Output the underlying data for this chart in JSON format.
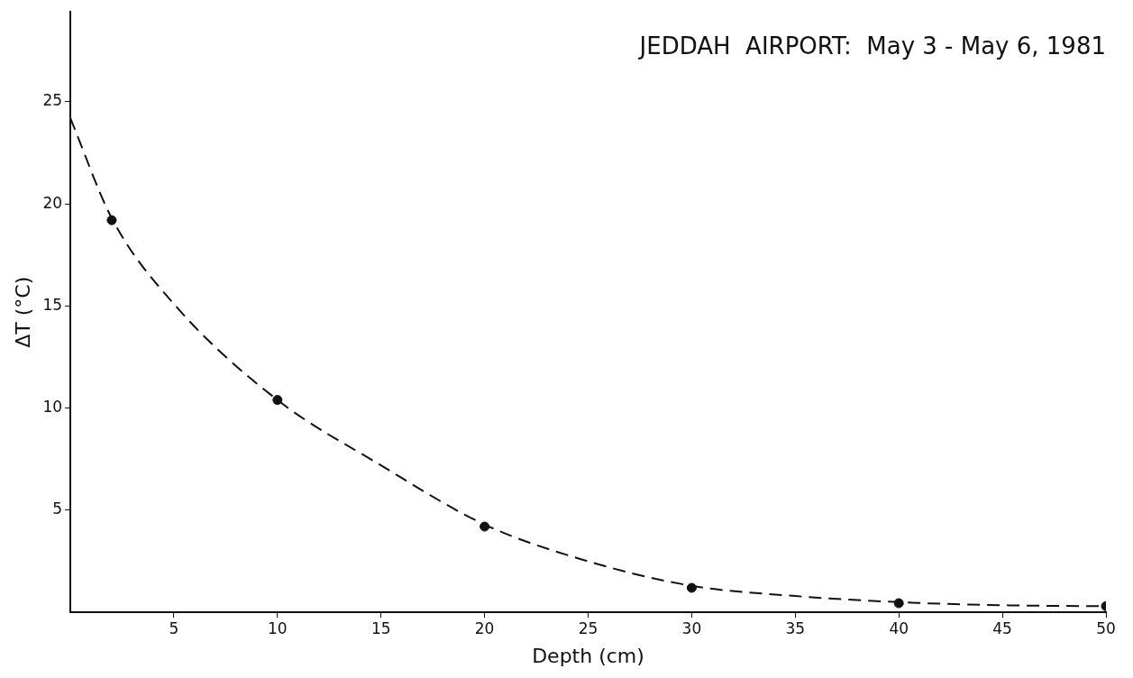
{
  "chart_data": {
    "type": "scatter",
    "title": "JEDDAH  AIRPORT:  May 3 - May 6, 1981",
    "xlabel": "Depth (cm)",
    "ylabel": "ΔT (°C)",
    "xlim": [
      0,
      50
    ],
    "xticks": [
      5,
      10,
      15,
      20,
      25,
      30,
      35,
      40,
      45,
      50
    ],
    "ylim": [
      0,
      29.4
    ],
    "yticks": [
      5,
      10,
      15,
      20,
      25
    ],
    "grid": false,
    "legend": false,
    "series": [
      {
        "color": "#111111",
        "marker": "circle",
        "x": [
          2,
          10,
          20,
          30,
          40,
          50
        ],
        "values": [
          19.2,
          10.4,
          4.2,
          1.2,
          0.45,
          0.3
        ]
      },
      {
        "type": "line",
        "color": "#111111",
        "marker": "none",
        "line_style": "dashed",
        "x": [
          0,
          2,
          5,
          10,
          15,
          20,
          25,
          30,
          35,
          40,
          45,
          50
        ],
        "values": [
          24.2,
          19.3,
          15.1,
          10.4,
          7.2,
          4.3,
          2.5,
          1.3,
          0.8,
          0.5,
          0.35,
          0.3
        ]
      }
    ]
  }
}
